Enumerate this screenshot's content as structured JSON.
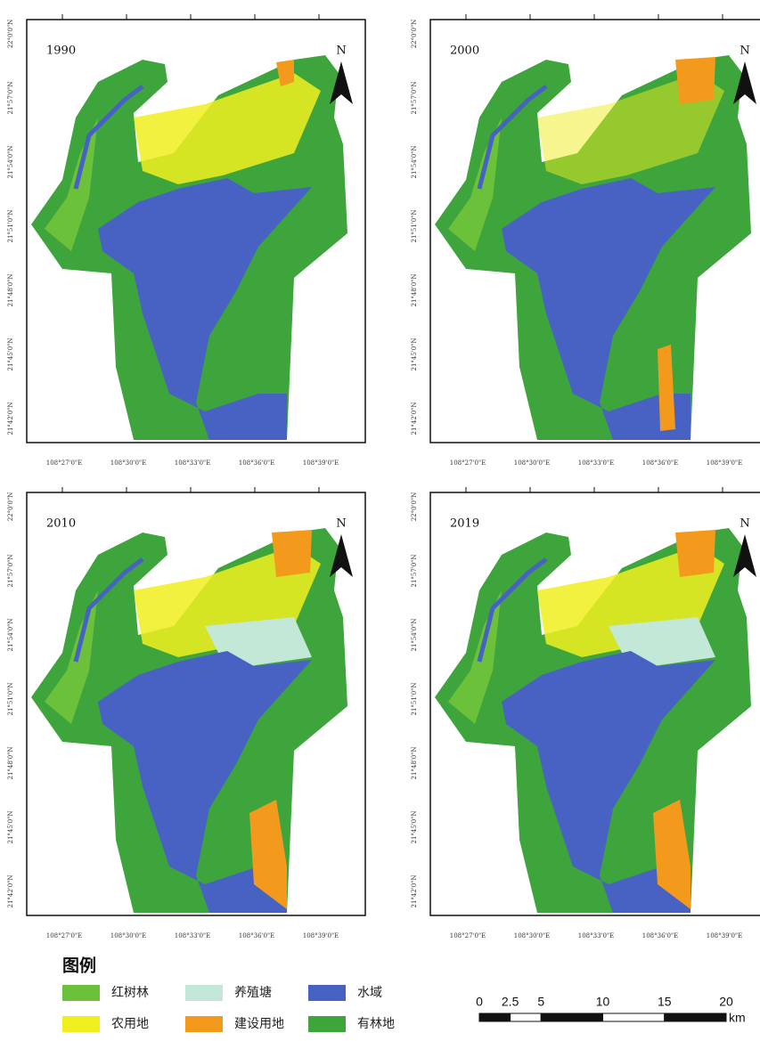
{
  "panels": [
    {
      "year": "1990",
      "north": "N",
      "lat_labels": [
        "22°0'0\"N",
        "21°57'0\"N",
        "21°54'0\"N",
        "21°51'0\"N",
        "21°48'0\"N",
        "21°45'0\"N",
        "21°42'0\"N"
      ],
      "lon_labels": [
        "108°27'0\"E",
        "108°30'0\"E",
        "108°33'0\"E",
        "108°36'0\"E",
        "108°39'0\"E"
      ]
    },
    {
      "year": "2000",
      "north": "N",
      "lat_labels": [
        "22°0'0\"N",
        "21°57'0\"N",
        "21°54'0\"N",
        "21°51'0\"N",
        "21°48'0\"N",
        "21°45'0\"N",
        "21°42'0\"N"
      ],
      "lon_labels": [
        "108°27'0\"E",
        "108°30'0\"E",
        "108°33'0\"E",
        "108°36'0\"E",
        "108°39'0\"E"
      ]
    },
    {
      "year": "2010",
      "north": "N",
      "lat_labels": [
        "22°0'0\"N",
        "21°57'0\"N",
        "21°54'0\"N",
        "21°51'0\"N",
        "21°48'0\"N",
        "21°45'0\"N",
        "21°42'0\"N"
      ],
      "lon_labels": [
        "108°27'0\"E",
        "108°30'0\"E",
        "108°33'0\"E",
        "108°36'0\"E",
        "108°39'0\"E"
      ]
    },
    {
      "year": "2019",
      "north": "N",
      "lat_labels": [
        "22°0'0\"N",
        "21°57'0\"N",
        "21°54'0\"N",
        "21°51'0\"N",
        "21°48'0\"N",
        "21°45'0\"N",
        "21°42'0\"N"
      ],
      "lon_labels": [
        "108°27'0\"E",
        "108°30'0\"E",
        "108°33'0\"E",
        "108°36'0\"E",
        "108°39'0\"E"
      ]
    }
  ],
  "legend": {
    "title": "图例",
    "items": [
      {
        "label": "红树林",
        "color": "#6cc13a"
      },
      {
        "label": "养殖塘",
        "color": "#c4e8d8"
      },
      {
        "label": "水域",
        "color": "#4762c3"
      },
      {
        "label": "农用地",
        "color": "#f0ee1e"
      },
      {
        "label": "建设用地",
        "color": "#f39a1c"
      },
      {
        "label": "有林地",
        "color": "#3da53c"
      }
    ]
  },
  "scale_bar": {
    "ticks": [
      0,
      2.5,
      5,
      10,
      15,
      20
    ],
    "unit": "km"
  }
}
